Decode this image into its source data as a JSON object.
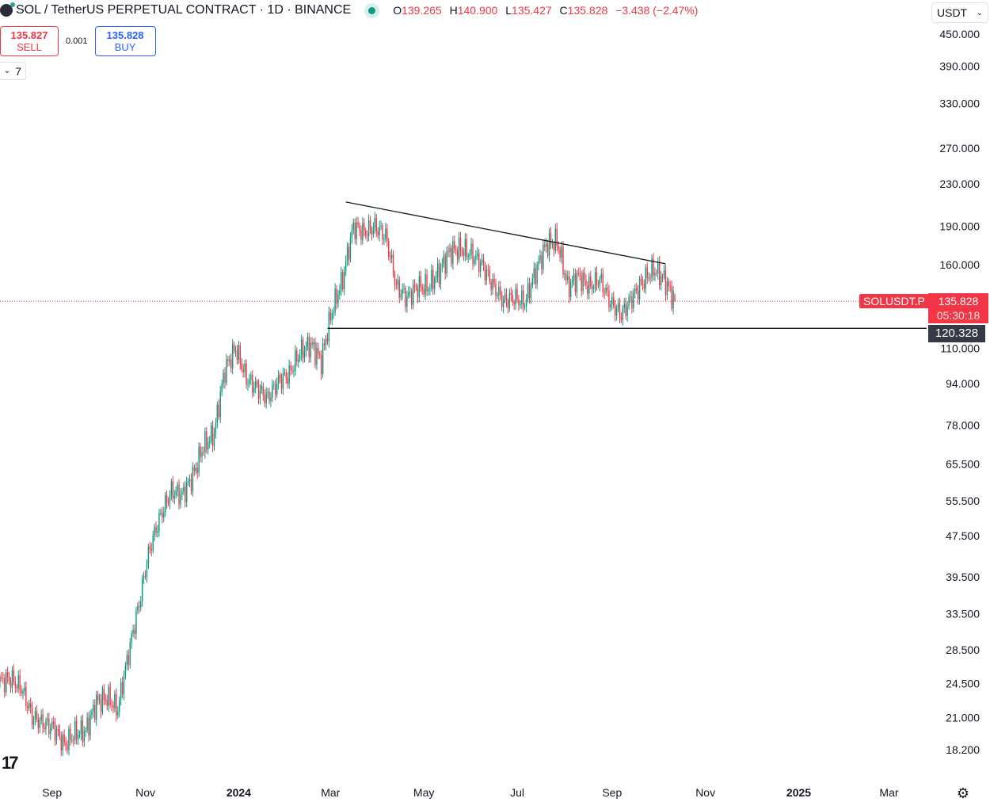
{
  "header": {
    "symbol_title": "SOL / TetherUS PERPETUAL CONTRACT · 1D · BINANCE",
    "status_color": "#089981",
    "ohlc": {
      "o_label": "O",
      "o": "139.265",
      "h_label": "H",
      "h": "140.900",
      "l_label": "L",
      "l": "135.427",
      "c_label": "C",
      "c": "135.828",
      "change": "−3.438 (−2.47%)"
    }
  },
  "trade": {
    "sell_price": "135.827",
    "sell_label": "SELL",
    "spread": "0.001",
    "buy_price": "135.828",
    "buy_label": "BUY"
  },
  "indicators_toggle": {
    "count": "7"
  },
  "currency_select": {
    "value": "USDT"
  },
  "price_label": {
    "symbol": "SOLUSDT.P",
    "price": "135.828",
    "countdown": "05:30:18",
    "color": "#f23645"
  },
  "support_label": {
    "price": "120.328"
  },
  "colors": {
    "up": "#089981",
    "down": "#f23645",
    "line": "#131722"
  },
  "chart_data": {
    "type": "candlestick",
    "title": "SOL / TetherUS PERPETUAL CONTRACT · 1D · BINANCE",
    "y_scale": "log",
    "ylim": [
      17,
      470
    ],
    "grid": false,
    "y_ticks": [
      "450.000",
      "390.000",
      "330.000",
      "270.000",
      "230.000",
      "190.000",
      "160.000",
      "110.000",
      "94.000",
      "78.000",
      "65.500",
      "55.500",
      "47.500",
      "39.500",
      "33.500",
      "28.500",
      "24.500",
      "21.000",
      "18.200"
    ],
    "x_ticks": [
      {
        "label": "Sep",
        "date": "2023-09-01"
      },
      {
        "label": "Nov",
        "date": "2023-11-01"
      },
      {
        "label": "2024",
        "date": "2024-01-01",
        "bold": true
      },
      {
        "label": "Mar",
        "date": "2024-03-01"
      },
      {
        "label": "May",
        "date": "2024-05-01"
      },
      {
        "label": "Jul",
        "date": "2024-07-01"
      },
      {
        "label": "Sep",
        "date": "2024-09-01"
      },
      {
        "label": "Nov",
        "date": "2024-11-01"
      },
      {
        "label": "2025",
        "date": "2025-01-01",
        "bold": true
      },
      {
        "label": "Mar",
        "date": "2025-03-01"
      }
    ],
    "weekly_closes_start": "2023-07-29",
    "weekly_closes": [
      24.7,
      25,
      24,
      21.1,
      20.5,
      20.1,
      18.6,
      19.6,
      19.8,
      22.5,
      23,
      21.8,
      28,
      35,
      45,
      52,
      58,
      57,
      62,
      71,
      75,
      100,
      110,
      96,
      92,
      88,
      95,
      98,
      108,
      112,
      104,
      130,
      150,
      190,
      185,
      190,
      182,
      145,
      138,
      145,
      145,
      155,
      170,
      172,
      168,
      160,
      146,
      136,
      138,
      135,
      155,
      175,
      178,
      145,
      152,
      145,
      150,
      135,
      128,
      138,
      148,
      157,
      150,
      135.828
    ],
    "last_candle": {
      "date": "2024-10-12",
      "open": 139.265,
      "high": 140.9,
      "low": 135.427,
      "close": 135.828
    },
    "trendlines": [
      {
        "name": "resistance",
        "from": {
          "date": "2024-03-11",
          "price": 212
        },
        "to": {
          "date": "2024-10-06",
          "price": 160.7
        }
      },
      {
        "name": "support",
        "from": {
          "date": "2024-02-28",
          "price": 120.328
        },
        "to": {
          "date": "extend-right",
          "price": 120.328
        }
      }
    ],
    "current_price": 135.828
  }
}
